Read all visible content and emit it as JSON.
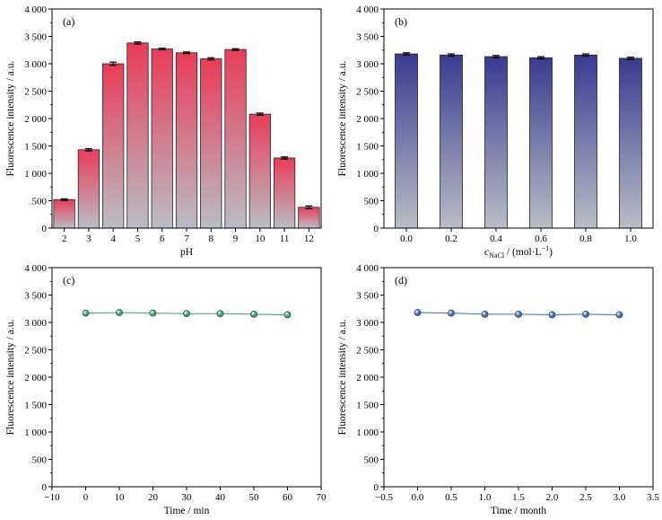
{
  "chart_data": [
    {
      "type": "bar",
      "panel_label": "(a)",
      "categories": [
        "2",
        "3",
        "4",
        "5",
        "6",
        "7",
        "8",
        "9",
        "10",
        "11",
        "12"
      ],
      "values": [
        520,
        1430,
        3000,
        3380,
        3270,
        3200,
        3090,
        3260,
        2080,
        1280,
        380
      ],
      "errors": [
        15,
        20,
        30,
        20,
        15,
        15,
        20,
        15,
        20,
        20,
        25
      ],
      "xlabel": "pH",
      "ylabel": "Fluorescence intensity / a.u.",
      "ylim": [
        0,
        4000
      ],
      "yticks": [
        "0",
        "500",
        "1 000",
        "1 500",
        "2 000",
        "2 500",
        "3 000",
        "3 500",
        "4 000"
      ],
      "gradient": {
        "top": "#ea3c58",
        "bottom": "#b9bdc4"
      }
    },
    {
      "type": "bar",
      "panel_label": "(b)",
      "categories": [
        "0.0",
        "0.2",
        "0.4",
        "0.6",
        "0.8",
        "1.0"
      ],
      "values": [
        3180,
        3160,
        3130,
        3110,
        3160,
        3100
      ],
      "errors": [
        20,
        20,
        20,
        20,
        20,
        20
      ],
      "xlabel": "c",
      "xlabel_sub": "NaCl",
      "xlabel_unit": " / (mol·L",
      "xlabel_sup": "−1",
      "xlabel_close": ")",
      "ylabel": "Fluorescence intensity / a.u.",
      "ylim": [
        0,
        4000
      ],
      "yticks": [
        "0",
        "500",
        "1 000",
        "1 500",
        "2 000",
        "2 500",
        "3 000",
        "3 500",
        "4 000"
      ],
      "gradient": {
        "top": "#3a3a92",
        "bottom": "#b9bdc4"
      }
    },
    {
      "type": "line",
      "panel_label": "(c)",
      "x": [
        0,
        10,
        20,
        30,
        40,
        50,
        60
      ],
      "y": [
        3170,
        3180,
        3170,
        3160,
        3160,
        3150,
        3140
      ],
      "xlabel": "Time / min",
      "ylabel": "Fluorescence intensity / a.u.",
      "xlim": [
        -10,
        70
      ],
      "xticks": [
        "−10",
        "0",
        "10",
        "20",
        "30",
        "40",
        "50",
        "60",
        "70"
      ],
      "ylim": [
        0,
        4000
      ],
      "yticks": [
        "0",
        "500",
        "1 000",
        "1 500",
        "2 000",
        "2 500",
        "3 000",
        "3 500",
        "4 000"
      ],
      "color": "#2aa86a"
    },
    {
      "type": "line",
      "panel_label": "(d)",
      "x": [
        0,
        0.5,
        1.0,
        1.5,
        2.0,
        2.5,
        3.0
      ],
      "y": [
        3180,
        3170,
        3150,
        3150,
        3140,
        3150,
        3140
      ],
      "xlabel": "Time / month",
      "ylabel": "Fluorescence intensity / a.u.",
      "xlim": [
        -0.5,
        3.5
      ],
      "xticks": [
        "−0.5",
        "0.0",
        "0.5",
        "1.0",
        "1.5",
        "2.0",
        "2.5",
        "3.0",
        "3.5"
      ],
      "ylim": [
        0,
        4000
      ],
      "yticks": [
        "0",
        "500",
        "1 000",
        "1 500",
        "2 000",
        "2 500",
        "3 000",
        "3 500",
        "4 000"
      ],
      "color": "#2f6fc4"
    }
  ]
}
